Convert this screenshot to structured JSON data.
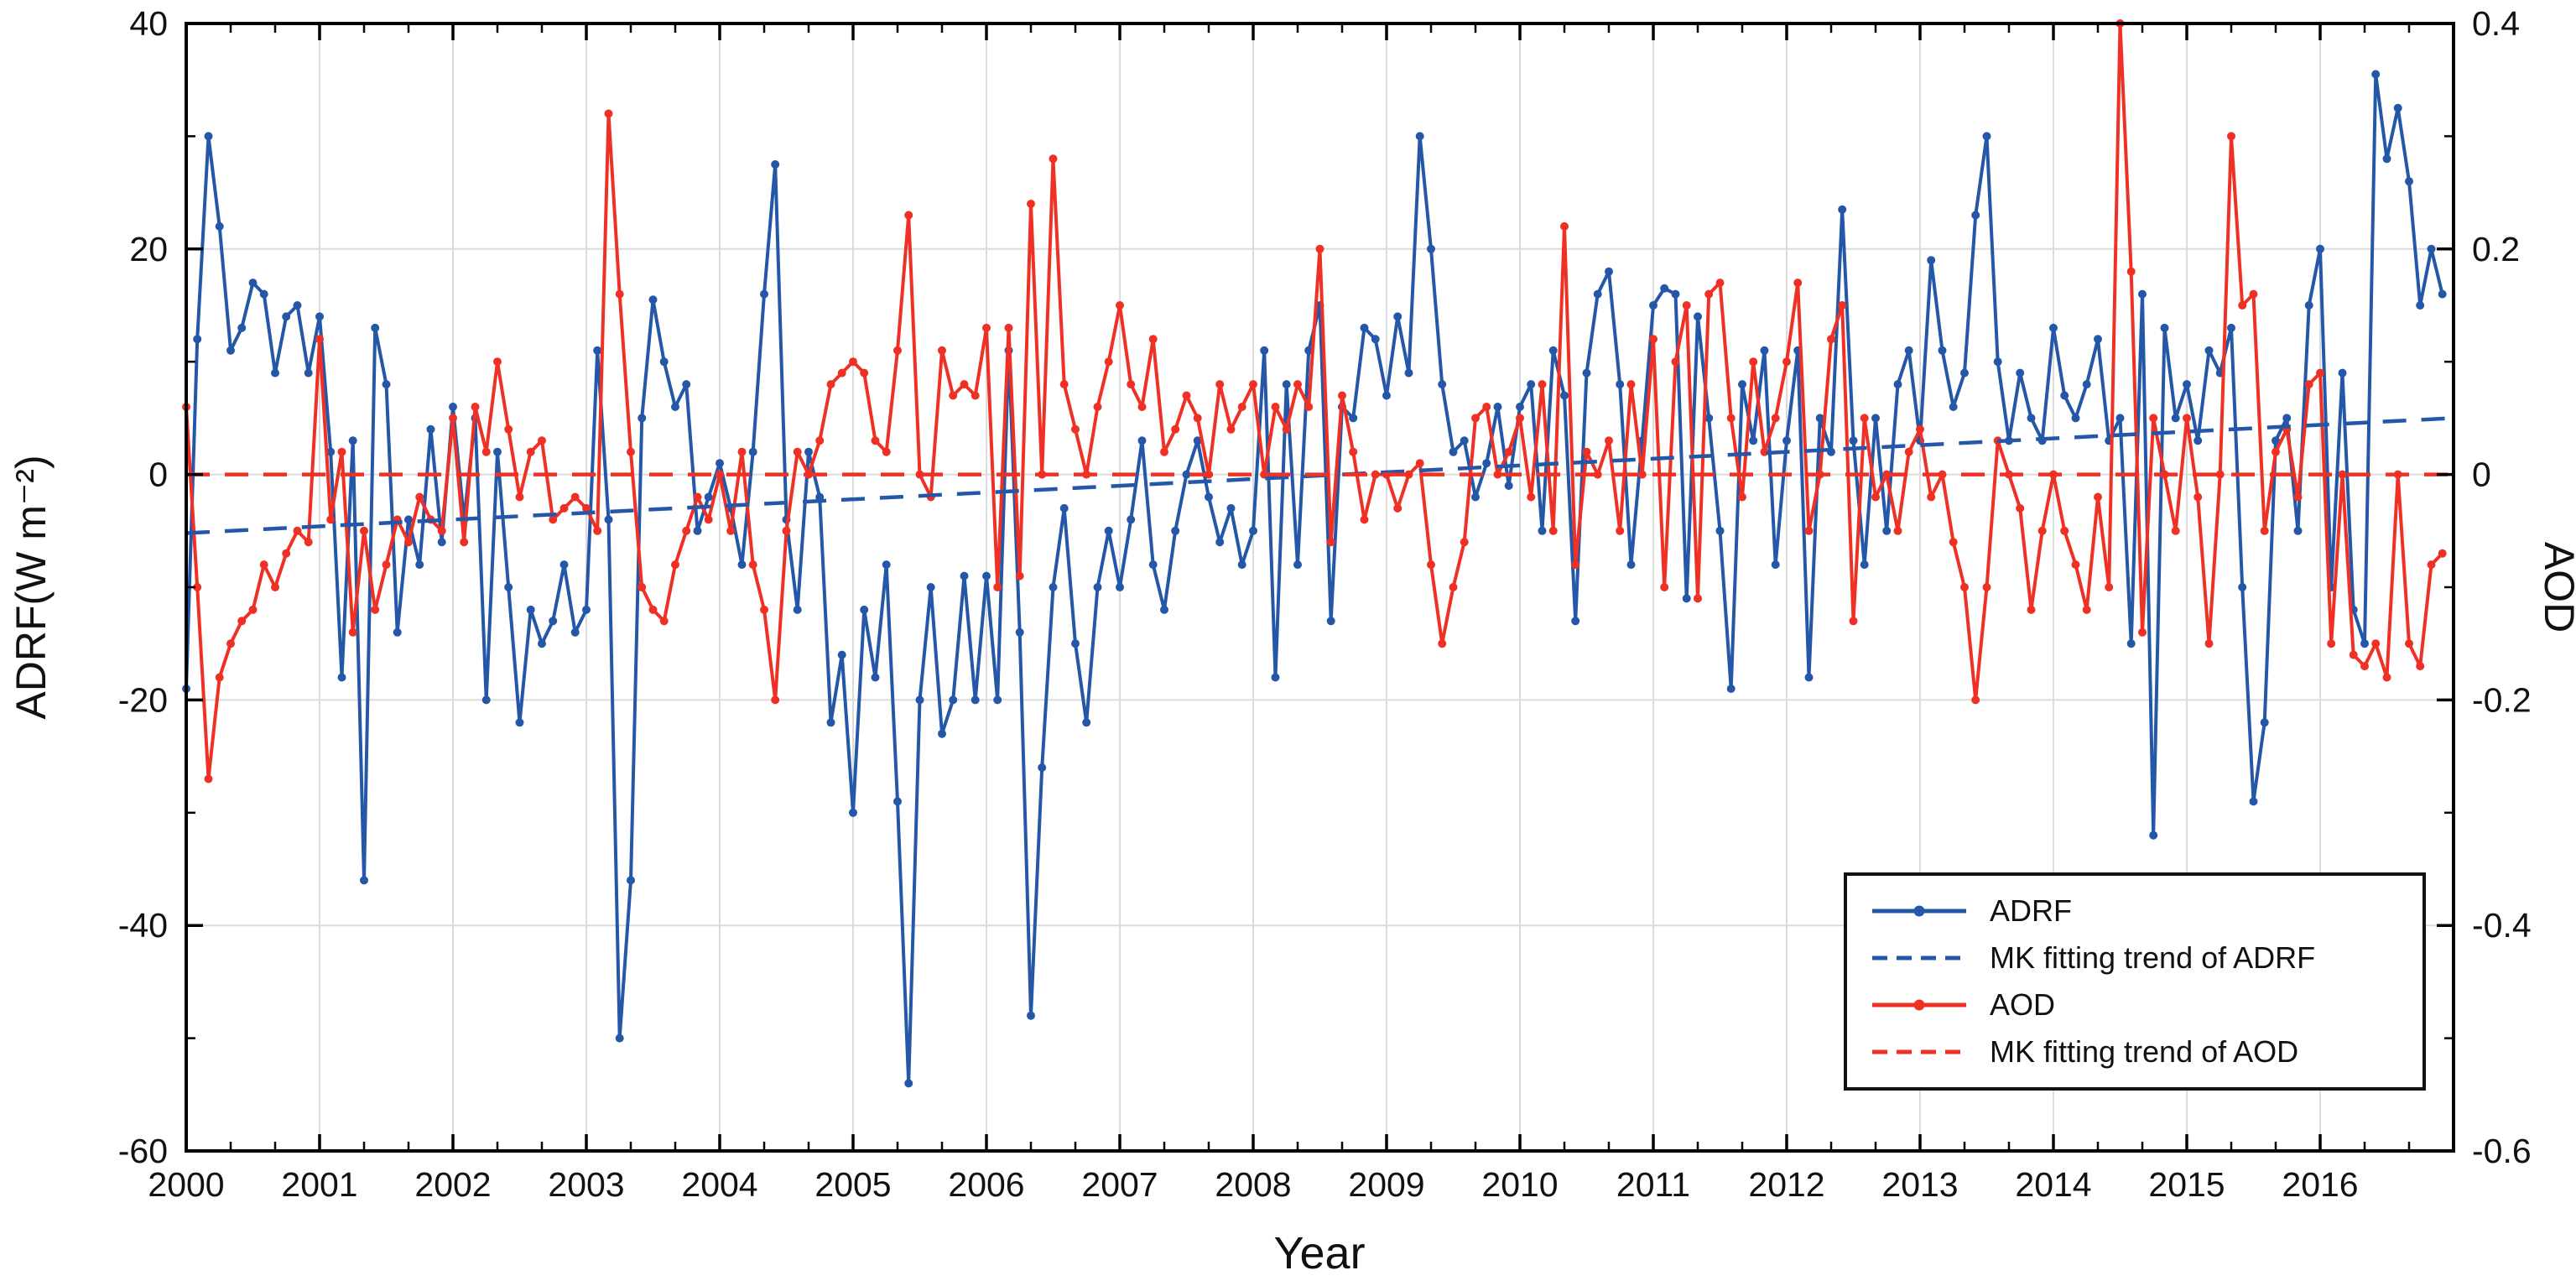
{
  "chart_data": {
    "type": "line",
    "title": "",
    "xlabel": "Year",
    "ylabel_left": "ADRF(W m⁻²)",
    "ylabel_right": "AOD",
    "x_range": [
      2000,
      2017
    ],
    "y_left_range": [
      -60,
      40
    ],
    "y_right_range": [
      -0.6,
      0.4
    ],
    "grid": true,
    "legend_position": "bottom-right",
    "colors": {
      "adrf": "#2457A7",
      "aod": "#EF3125",
      "grid": "#DBDBDB",
      "frame": "#000000"
    },
    "x_ticks": {
      "values": [
        2000,
        2001,
        2002,
        2003,
        2004,
        2005,
        2006,
        2007,
        2008,
        2009,
        2010,
        2011,
        2012,
        2013,
        2014,
        2015,
        2016
      ],
      "labels": [
        "2000",
        "2001",
        "2002",
        "2003",
        "2004",
        "2005",
        "2006",
        "2007",
        "2008",
        "2009",
        "2010",
        "2011",
        "2012",
        "2013",
        "2014",
        "2015",
        "2016"
      ]
    },
    "y_left_ticks": {
      "values": [
        40,
        20,
        0,
        -20,
        -40,
        -60
      ],
      "labels": [
        "40",
        "20",
        "0",
        "-20",
        "-40",
        "-60"
      ]
    },
    "y_right_ticks": {
      "values": [
        0.4,
        0.2,
        0,
        -0.2,
        -0.4,
        -0.6
      ],
      "labels": [
        "0.4",
        "0.2",
        "0",
        "-0.2",
        "-0.4",
        "-0.6"
      ]
    },
    "x_minor_ticks_per_year": 3,
    "y_left_minor_ticks": [
      -50,
      -30,
      -10,
      10,
      30
    ],
    "series": [
      {
        "name": "ADRF",
        "axis": "left",
        "color": "#2457A7",
        "x_start": 2000,
        "x_step_years": 0.0833333,
        "values": [
          -19,
          12,
          30,
          22,
          11,
          13,
          17,
          16,
          9,
          14,
          15,
          9,
          14,
          2,
          -18,
          3,
          -36,
          13,
          8,
          -14,
          -4,
          -8,
          4,
          -6,
          6,
          -4,
          5,
          -20,
          2,
          -10,
          -22,
          -12,
          -15,
          -13,
          -8,
          -14,
          -12,
          11,
          -4,
          -50,
          -36,
          5,
          15.5,
          10,
          6,
          8,
          -5,
          -2,
          1,
          -3,
          -8,
          2,
          16,
          27.5,
          -4,
          -12,
          2,
          -2,
          -22,
          -16,
          -30,
          -12,
          -18,
          -8,
          -29,
          -54,
          -20,
          -10,
          -23,
          -20,
          -9,
          -20,
          -9,
          -20,
          11,
          -14,
          -48,
          -26,
          -10,
          -3,
          -15,
          -22,
          -10,
          -5,
          -10,
          -4,
          3,
          -8,
          -12,
          -5,
          0,
          3,
          -2,
          -6,
          -3,
          -8,
          -5,
          11,
          -18,
          8,
          -8,
          11,
          15,
          -13,
          6,
          5,
          13,
          12,
          7,
          14,
          9,
          30,
          20,
          8,
          2,
          3,
          -2,
          1,
          6,
          -1,
          6,
          8,
          -5,
          11,
          7,
          -13,
          9,
          16,
          18,
          8,
          -8,
          3,
          15,
          16.5,
          16,
          -11,
          14,
          5,
          -5,
          -19,
          8,
          3,
          11,
          -8,
          3,
          11,
          -18,
          5,
          2,
          23.5,
          3,
          -8,
          5,
          -5,
          8,
          11,
          3,
          19,
          11,
          6,
          9,
          23,
          30,
          10,
          3,
          9,
          5,
          3,
          13,
          7,
          5,
          8,
          12,
          3,
          5,
          -15,
          16,
          -32,
          13,
          5,
          8,
          3,
          11,
          9,
          13,
          -10,
          -29,
          -22,
          3,
          5,
          -5,
          15,
          20,
          -10,
          9,
          -12,
          -15,
          35.5,
          28,
          32.5,
          26,
          15,
          20,
          16
        ]
      },
      {
        "name": "AOD",
        "axis": "right",
        "color": "#EF3125",
        "x_start": 2000,
        "x_step_years": 0.0833333,
        "values": [
          0.06,
          -0.1,
          -0.27,
          -0.18,
          -0.15,
          -0.13,
          -0.12,
          -0.08,
          -0.1,
          -0.07,
          -0.05,
          -0.06,
          0.12,
          -0.04,
          0.02,
          -0.14,
          -0.05,
          -0.12,
          -0.08,
          -0.04,
          -0.06,
          -0.02,
          -0.04,
          -0.05,
          0.05,
          -0.06,
          0.06,
          0.02,
          0.1,
          0.04,
          -0.02,
          0.02,
          0.03,
          -0.04,
          -0.03,
          -0.02,
          -0.03,
          -0.05,
          0.32,
          0.16,
          0.02,
          -0.1,
          -0.12,
          -0.13,
          -0.08,
          -0.05,
          -0.02,
          -0.04,
          0.0,
          -0.05,
          0.02,
          -0.08,
          -0.12,
          -0.2,
          -0.05,
          0.02,
          0.0,
          0.03,
          0.08,
          0.09,
          0.1,
          0.09,
          0.03,
          0.02,
          0.11,
          0.23,
          0.0,
          -0.02,
          0.11,
          0.07,
          0.08,
          0.07,
          0.13,
          -0.1,
          0.13,
          -0.09,
          0.24,
          0.0,
          0.28,
          0.08,
          0.04,
          0.0,
          0.06,
          0.1,
          0.15,
          0.08,
          0.06,
          0.12,
          0.02,
          0.04,
          0.07,
          0.05,
          0.0,
          0.08,
          0.04,
          0.06,
          0.08,
          0.0,
          0.06,
          0.04,
          0.08,
          0.06,
          0.2,
          -0.06,
          0.07,
          0.02,
          -0.04,
          0.0,
          0.0,
          -0.03,
          0.0,
          0.01,
          -0.08,
          -0.15,
          -0.1,
          -0.06,
          0.05,
          0.06,
          0.0,
          0.02,
          0.05,
          -0.02,
          0.08,
          -0.05,
          0.22,
          -0.08,
          0.02,
          0.0,
          0.03,
          -0.05,
          0.08,
          0.0,
          0.12,
          -0.1,
          0.1,
          0.15,
          -0.11,
          0.16,
          0.17,
          0.05,
          -0.02,
          0.1,
          0.02,
          0.05,
          0.1,
          0.17,
          -0.05,
          0.0,
          0.12,
          0.15,
          -0.13,
          0.05,
          -0.02,
          0.0,
          -0.05,
          0.02,
          0.04,
          -0.02,
          0.0,
          -0.06,
          -0.1,
          -0.2,
          -0.1,
          0.03,
          0.0,
          -0.03,
          -0.12,
          -0.05,
          0.0,
          -0.05,
          -0.08,
          -0.12,
          -0.02,
          -0.1,
          0.4,
          0.18,
          -0.14,
          0.05,
          0.0,
          -0.05,
          0.05,
          -0.02,
          -0.15,
          0.0,
          0.3,
          0.15,
          0.16,
          -0.05,
          0.02,
          0.04,
          -0.02,
          0.08,
          0.09,
          -0.15,
          0.0,
          -0.16,
          -0.17,
          -0.15,
          -0.18,
          0.0,
          -0.15,
          -0.17,
          -0.08,
          -0.07
        ]
      }
    ],
    "trends": [
      {
        "name": "MK fitting trend of ADRF",
        "axis": "left",
        "color": "#2457A7",
        "x": [
          2000,
          2017
        ],
        "y": [
          -5.2,
          5.0
        ]
      },
      {
        "name": "MK fitting trend of AOD",
        "axis": "right",
        "color": "#EF3125",
        "x": [
          2000,
          2017
        ],
        "y": [
          0.0,
          0.0
        ]
      }
    ],
    "legend": {
      "items": [
        {
          "label": "ADRF",
          "color": "#2457A7",
          "dashed": false,
          "marker": true
        },
        {
          "label": "MK fitting trend of ADRF",
          "color": "#2457A7",
          "dashed": true,
          "marker": false
        },
        {
          "label": "AOD",
          "color": "#EF3125",
          "dashed": false,
          "marker": true
        },
        {
          "label": "MK fitting trend of AOD",
          "color": "#EF3125",
          "dashed": true,
          "marker": false
        }
      ]
    }
  }
}
